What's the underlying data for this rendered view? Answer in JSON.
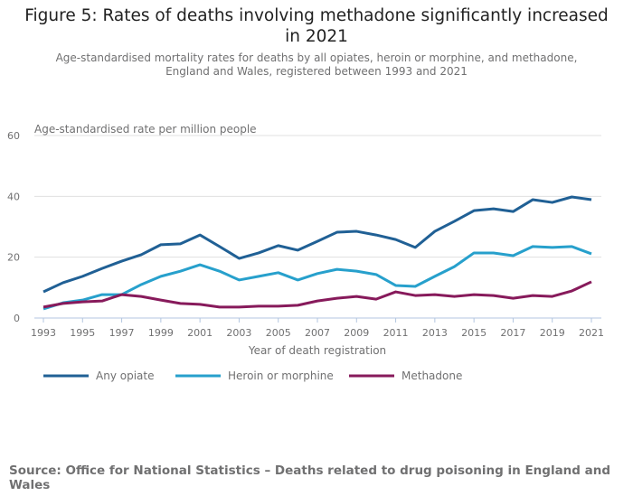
{
  "chart_data": {
    "type": "line",
    "title": "Figure 5: Rates of deaths involving methadone significantly increased in 2021",
    "subtitle": "Age-standardised mortality rates for deaths by all opiates, heroin or morphine, and methadone, England and Wales, registered between 1993 and 2021",
    "ylabel": "Age-standardised rate per million people",
    "xlabel": "Year of death registration",
    "ylim": [
      0,
      60
    ],
    "yticks": [
      0,
      20,
      40,
      60
    ],
    "xticks": [
      1993,
      1995,
      1997,
      1999,
      2001,
      2003,
      2005,
      2007,
      2009,
      2011,
      2013,
      2015,
      2017,
      2019,
      2021
    ],
    "grid": true,
    "legend_placement": "bottom-left",
    "x": [
      1993,
      1994,
      1995,
      1996,
      1997,
      1998,
      1999,
      2000,
      2001,
      2002,
      2003,
      2004,
      2005,
      2006,
      2007,
      2008,
      2009,
      2010,
      2011,
      2012,
      2013,
      2014,
      2015,
      2016,
      2017,
      2018,
      2019,
      2020,
      2021
    ],
    "series": [
      {
        "name": "Any opiate",
        "color": "#206095",
        "values": [
          8.6,
          11.6,
          13.7,
          16.3,
          18.7,
          20.8,
          24.1,
          24.4,
          27.3,
          23.5,
          19.6,
          21.4,
          23.8,
          22.3,
          25.2,
          28.2,
          28.5,
          27.3,
          25.8,
          23.2,
          28.5,
          31.8,
          35.3,
          35.9,
          35.0,
          38.9,
          38.0,
          39.8,
          38.9
        ]
      },
      {
        "name": "Heroin or morphine",
        "color": "#27a0cc",
        "values": [
          3.0,
          5.0,
          5.9,
          7.7,
          7.7,
          11.0,
          13.7,
          15.4,
          17.5,
          15.4,
          12.5,
          13.7,
          14.9,
          12.5,
          14.6,
          16.0,
          15.4,
          14.3,
          10.7,
          10.4,
          13.7,
          16.9,
          21.4,
          21.4,
          20.5,
          23.5,
          23.2,
          23.5,
          21.1
        ]
      },
      {
        "name": "Methadone",
        "color": "#871a5b",
        "values": [
          3.6,
          4.8,
          5.3,
          5.6,
          7.7,
          7.1,
          5.9,
          4.8,
          4.5,
          3.6,
          3.6,
          3.9,
          3.9,
          4.2,
          5.6,
          6.5,
          7.1,
          6.2,
          8.6,
          7.4,
          7.7,
          7.1,
          7.7,
          7.4,
          6.5,
          7.4,
          7.1,
          8.9,
          11.9
        ]
      }
    ]
  },
  "source": "Source: Office for National Statistics – Deaths related to drug poisoning in England and Wales"
}
